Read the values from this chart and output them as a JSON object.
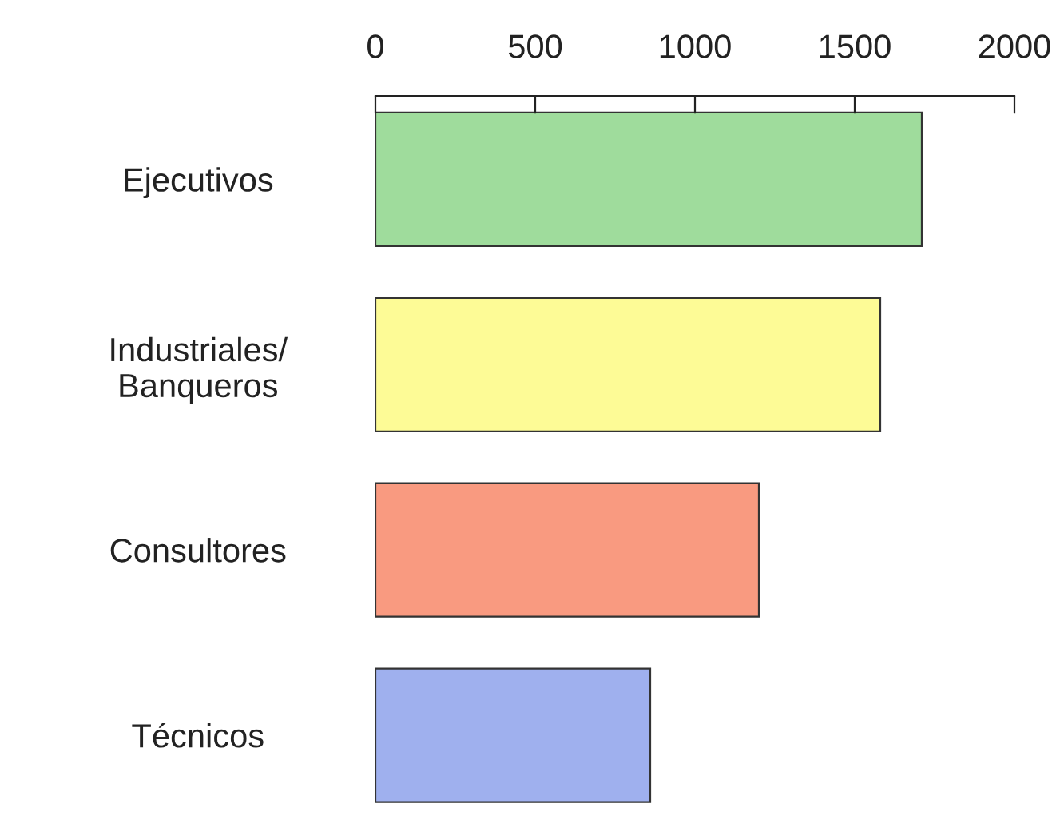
{
  "chart_data": {
    "type": "bar",
    "orientation": "horizontal",
    "categories": [
      "Ejecutivos",
      "Industriales/\nBanqueros",
      "Consultores",
      "Técnicos"
    ],
    "values": [
      1710,
      1580,
      1200,
      860
    ],
    "colors": [
      "#9fdc9c",
      "#fdfb96",
      "#f99a80",
      "#9fb0ee"
    ],
    "xlim": [
      0,
      2000
    ],
    "xticks": [
      0,
      500,
      1000,
      1500,
      2000
    ],
    "grid": false
  }
}
